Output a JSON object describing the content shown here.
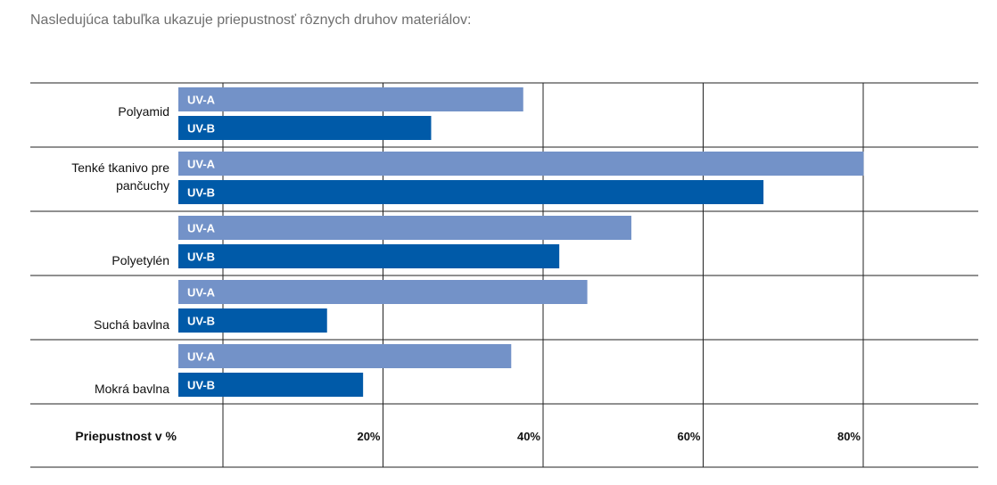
{
  "intro_text": "Nasledujúca tabuľka ukazuje priepustnosť rôznych druhov materiálov:",
  "chart_data": {
    "type": "bar",
    "orientation": "horizontal",
    "categories": [
      [
        "Polyamid"
      ],
      [
        "Tenké tkanivo pre",
        "pančuchy"
      ],
      [
        "Polyetylén"
      ],
      [
        "Suchá bavlna"
      ],
      [
        "Mokrá bavlna"
      ]
    ],
    "series": [
      {
        "name": "UV-A",
        "color": "#7392c8",
        "values": [
          37.5,
          80,
          51,
          45.5,
          36
        ]
      },
      {
        "name": "UV-B",
        "color": "#005aa8",
        "values": [
          26,
          67.5,
          42,
          13,
          17.5
        ]
      }
    ],
    "xlabel": "Priepustnost v %",
    "xticks": [
      "20%",
      "40%",
      "60%",
      "80%"
    ],
    "xtick_values": [
      20,
      40,
      60,
      80
    ],
    "xlim": [
      0,
      80
    ],
    "grid": true
  }
}
